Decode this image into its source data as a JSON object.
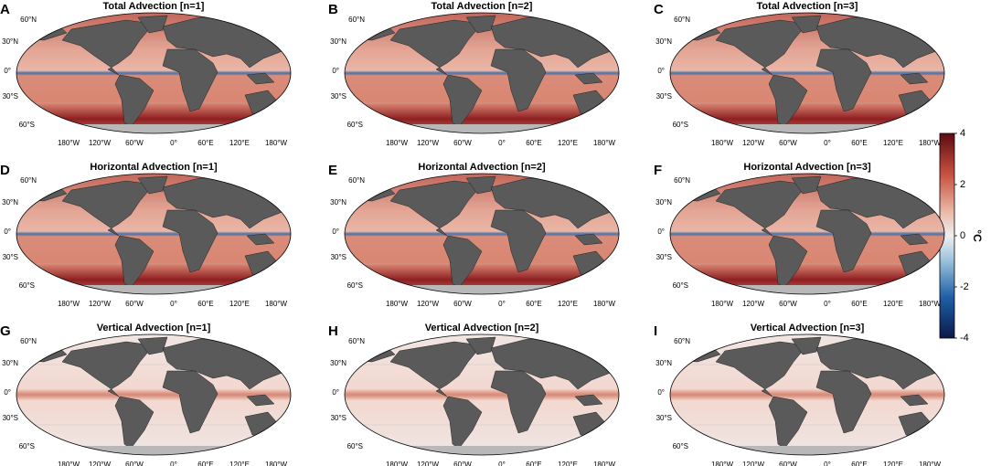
{
  "panels": [
    {
      "letter": "A",
      "title": "Total Advection [n=1]"
    },
    {
      "letter": "B",
      "title": "Total Advection [n=2]"
    },
    {
      "letter": "C",
      "title": "Total Advection [n=3]"
    },
    {
      "letter": "D",
      "title": "Horizontal Advection [n=1]"
    },
    {
      "letter": "E",
      "title": "Horizontal Advection [n=2]"
    },
    {
      "letter": "F",
      "title": "Horizontal Advection [n=3]"
    },
    {
      "letter": "G",
      "title": "Vertical Advection [n=1]"
    },
    {
      "letter": "H",
      "title": "Vertical Advection [n=2]"
    },
    {
      "letter": "I",
      "title": "Vertical Advection [n=3]"
    }
  ],
  "lon_labels": [
    "180°W",
    "120°W",
    "60°W",
    "0°",
    "60°E",
    "120°E",
    "180°W"
  ],
  "lat_labels": [
    "60°N",
    "30°N",
    "0°",
    "30°S",
    "60°S"
  ],
  "colorbar": {
    "label": "°C",
    "lim": [
      -4,
      4
    ],
    "ticks": [
      4,
      2,
      0,
      -2,
      -4
    ]
  }
}
